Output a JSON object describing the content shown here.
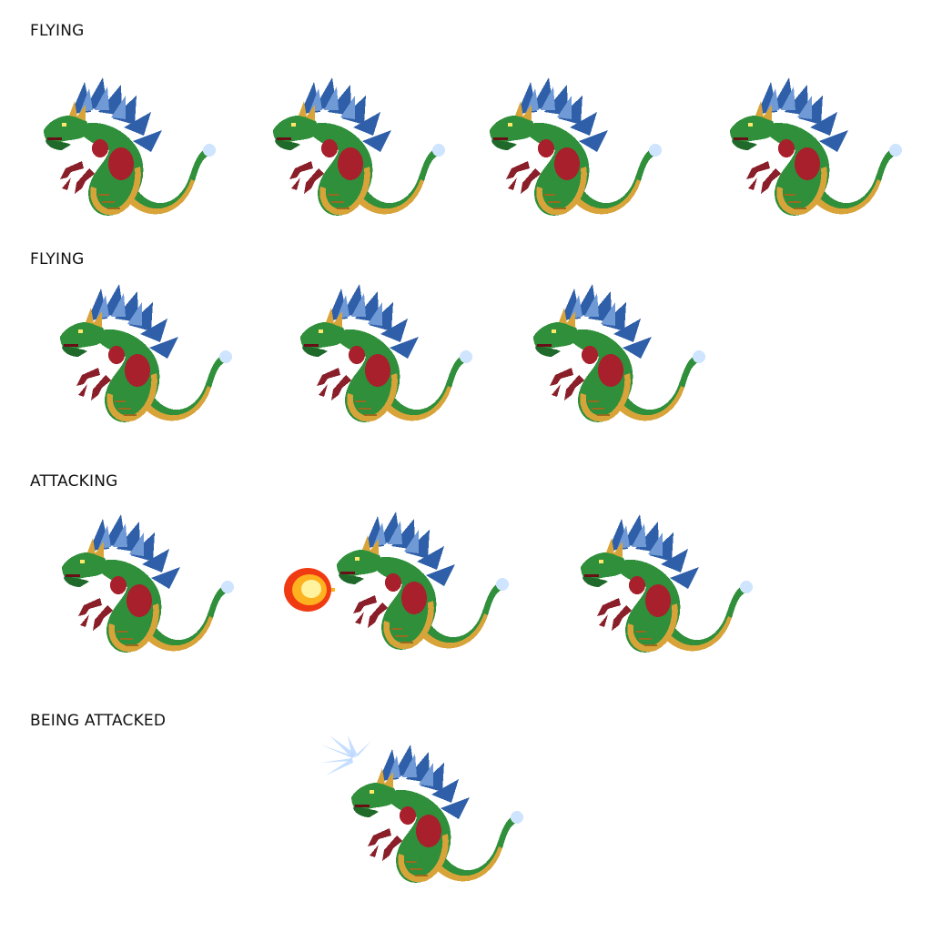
{
  "sheet": {
    "rows": [
      {
        "label": "FLYING",
        "frames": 4,
        "state": "flying"
      },
      {
        "label": "FLYING",
        "frames": 3,
        "state": "flying"
      },
      {
        "label": "ATTACKING",
        "frames": 3,
        "state": "attacking"
      },
      {
        "label": "BEING ATTACKED",
        "frames": 1,
        "state": "hit"
      }
    ]
  },
  "palette": {
    "mane": "#2f5fa8",
    "mane_light": "#6f9ad6",
    "body": "#2f8f3a",
    "body_dark": "#1f6a2a",
    "belly": "#d8a43a",
    "belly_dark": "#9a6a1e",
    "claws": "#8a1f2a",
    "muscle": "#a8202c",
    "tail_orb": "#cfe4ff",
    "fireball_core": "#fff3a0",
    "fireball_mid": "#ffb21f",
    "fireball_outer": "#f03a12",
    "hit_flash": "#bcd8ff"
  },
  "icons": {
    "sprite": "dragon-sprite-icon",
    "fireball": "fireball-icon",
    "impact": "impact-burst-icon"
  }
}
